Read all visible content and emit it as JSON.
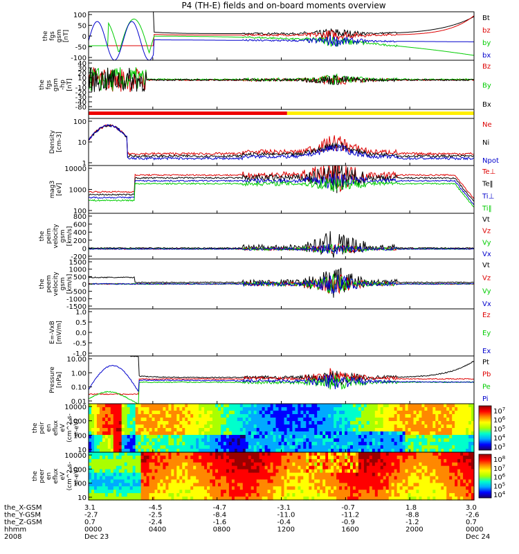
{
  "title": "P4 (TH-E) fields and on-board moments overview",
  "chart_data": [
    {
      "type": "line",
      "ylabel": [
        "the",
        "fgs",
        "gsm",
        "[nT]"
      ],
      "yticks": [
        "100",
        "50",
        "0",
        "-50",
        "-100"
      ],
      "ylim": [
        -100,
        100
      ],
      "series": [
        {
          "name": "Bt",
          "color": "#000000"
        },
        {
          "name": "bz",
          "color": "#dd0000"
        },
        {
          "name": "by",
          "color": "#00cc00"
        },
        {
          "name": "bx",
          "color": "#0000cc"
        }
      ]
    },
    {
      "type": "line",
      "ylabel": [
        "the",
        "fgs",
        "gsm",
        "-hp",
        "[nT]"
      ],
      "yticks": [
        "40",
        "30",
        "20",
        "10",
        "0",
        "-10",
        "-20",
        "-30",
        "-40",
        "-80"
      ],
      "series": [
        {
          "name": "Bz",
          "color": "#dd0000"
        },
        {
          "name": "By",
          "color": "#00cc00"
        },
        {
          "name": "Bx",
          "color": "#000000"
        }
      ]
    },
    {
      "type": "bar",
      "description_segments": [
        {
          "from": "0000",
          "to": "1230",
          "color": "#ee0000"
        },
        {
          "from": "1230",
          "to": "2400",
          "color": "#ffee00"
        }
      ]
    },
    {
      "type": "line",
      "scale": "log",
      "ylabel": [
        "Density",
        "[cm-3]"
      ],
      "yticks": [
        "100",
        "10",
        "1"
      ],
      "series": [
        {
          "name": "Ne",
          "color": "#dd0000"
        },
        {
          "name": "Ni",
          "color": "#000000"
        },
        {
          "name": "Npot",
          "color": "#0000cc"
        }
      ]
    },
    {
      "type": "line",
      "scale": "log",
      "ylabel": [
        "mag3",
        "[eV]"
      ],
      "yticks": [
        "10000",
        "1000",
        "100"
      ],
      "series": [
        {
          "name": "Te⊥",
          "color": "#dd0000"
        },
        {
          "name": "Te‖",
          "color": "#000000"
        },
        {
          "name": "Ti⊥",
          "color": "#0000cc"
        },
        {
          "name": "Ti‖",
          "color": "#00cc00"
        }
      ]
    },
    {
      "type": "line",
      "ylabel": [
        "the",
        "peim",
        "velocity",
        "gsm",
        "[km/s]"
      ],
      "yticks": [
        "800",
        "600",
        "400",
        "200",
        "0",
        "-200"
      ],
      "series": [
        {
          "name": "Vt",
          "color": "#000000"
        },
        {
          "name": "Vz",
          "color": "#dd0000"
        },
        {
          "name": "Vy",
          "color": "#00cc00"
        },
        {
          "name": "Vx",
          "color": "#0000cc"
        }
      ]
    },
    {
      "type": "line",
      "ylabel": [
        "the",
        "peem",
        "velocity",
        "gsm",
        "[km/s]"
      ],
      "yticks": [
        "1500",
        "1000",
        "500",
        "0",
        "-500",
        "-1000",
        "-1500"
      ],
      "series": [
        {
          "name": "Vt",
          "color": "#000000"
        },
        {
          "name": "Vz",
          "color": "#dd0000"
        },
        {
          "name": "Vy",
          "color": "#00cc00"
        },
        {
          "name": "Vx",
          "color": "#0000cc"
        }
      ]
    },
    {
      "type": "line",
      "ylabel": [
        "E=-VxB",
        "[mV/m]"
      ],
      "yticks": [
        "1.0",
        "0.5",
        "0.0",
        "-0.5",
        "-1.0"
      ],
      "ylim": [
        -1,
        1
      ],
      "series": [
        {
          "name": "Ez",
          "color": "#dd0000"
        },
        {
          "name": "Ey",
          "color": "#00cc00"
        },
        {
          "name": "Ex",
          "color": "#0000cc"
        }
      ]
    },
    {
      "type": "line",
      "scale": "log",
      "ylabel": [
        "Pressure",
        "[nPa]"
      ],
      "yticks": [
        "10.00",
        "1.00",
        "0.10",
        "0.01"
      ],
      "series": [
        {
          "name": "Pt",
          "color": "#000000"
        },
        {
          "name": "Pb",
          "color": "#dd0000"
        },
        {
          "name": "Pe",
          "color": "#00cc00"
        },
        {
          "name": "Pi",
          "color": "#0000cc"
        }
      ]
    },
    {
      "type": "heatmap",
      "ylabel": [
        "the",
        "peir",
        "en",
        "eflux",
        "eV",
        "(cm^2-s-",
        "sr-eV)"
      ],
      "yticks": [
        "10000",
        "1000",
        "100",
        "10"
      ],
      "colorbar_ticks": [
        "10^7",
        "10^6",
        "10^5",
        "10^4",
        "10^3"
      ]
    },
    {
      "type": "heatmap",
      "ylabel": [
        "the",
        "peer",
        "en",
        "eflux",
        "eV",
        "(cm^2-s-",
        "sr-eV)"
      ],
      "yticks": [
        "10000",
        "1000",
        "100",
        "10"
      ],
      "colorbar_ticks": [
        "10^8",
        "10^7",
        "10^6",
        "10^5",
        "10^4"
      ]
    }
  ],
  "xaxis": {
    "row_labels": [
      "the_X-GSM",
      "the_Y-GSM",
      "the_Z-GSM",
      "hhmm",
      "2008"
    ],
    "ticks": [
      {
        "x": "3.1",
        "y": "-2.7",
        "z": "0.7",
        "time": "0000",
        "date": "Dec 23"
      },
      {
        "x": "-4.5",
        "y": "-2.5",
        "z": "-2.4",
        "time": "0400",
        "date": ""
      },
      {
        "x": "-4.7",
        "y": "-8.4",
        "z": "-1.6",
        "time": "0800",
        "date": ""
      },
      {
        "x": "-3.1",
        "y": "-11.0",
        "z": "-0.4",
        "time": "1200",
        "date": ""
      },
      {
        "x": "-0.7",
        "y": "-11.2",
        "z": "-0.9",
        "time": "1600",
        "date": ""
      },
      {
        "x": "1.8",
        "y": "-8.8",
        "z": "-1.2",
        "time": "2000",
        "date": ""
      },
      {
        "x": "3.0",
        "y": "-2.6",
        "z": "0.7",
        "time": "0000",
        "date": "Dec 24"
      }
    ]
  }
}
